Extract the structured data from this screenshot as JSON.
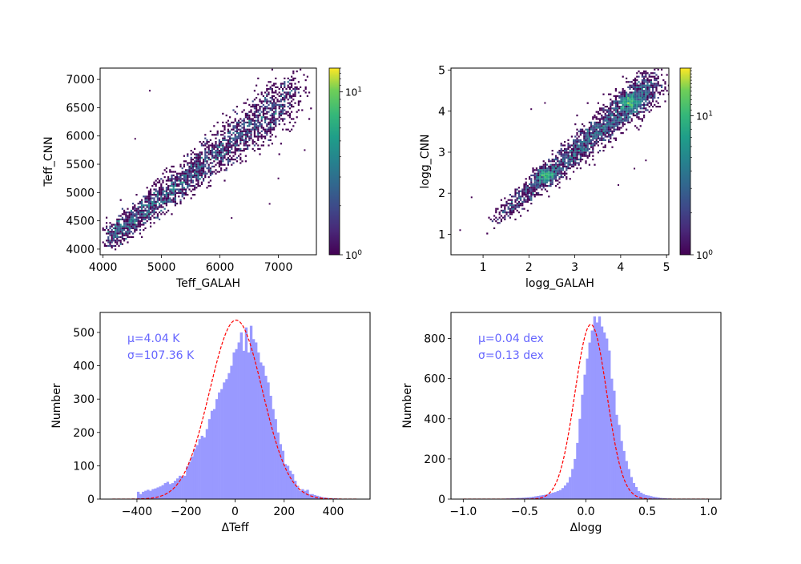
{
  "chart_data": [
    {
      "id": "teff_scatter",
      "type": "heatmap",
      "title": "",
      "xlabel": "Teff_GALAH",
      "ylabel": "Teff_CNN",
      "xlim": [
        3950,
        7650
      ],
      "ylim": [
        3900,
        7200
      ],
      "xticks": [
        4000,
        5000,
        6000,
        7000
      ],
      "yticks": [
        4000,
        4500,
        5000,
        5500,
        6000,
        6500,
        7000
      ],
      "colorbar": {
        "scale": "log",
        "range": [
          1,
          14
        ],
        "ticks": [
          {
            "value": 1,
            "label": "10^0"
          },
          {
            "value": 10,
            "label": "10^1"
          }
        ],
        "colormap": "viridis"
      },
      "trend": {
        "x0": 4100,
        "y0": 4200,
        "x1": 7400,
        "y1": 6900,
        "scatter_sigma": 150
      },
      "outliers": [
        [
          4800,
          6800
        ],
        [
          4550,
          5950
        ],
        [
          6850,
          4800
        ],
        [
          7000,
          5250
        ],
        [
          6200,
          4550
        ],
        [
          7450,
          5750
        ]
      ]
    },
    {
      "id": "logg_scatter",
      "type": "heatmap",
      "title": "",
      "xlabel": "logg_GALAH",
      "ylabel": "logg_CNN",
      "xlim": [
        0.3,
        5.05
      ],
      "ylim": [
        0.5,
        5.05
      ],
      "xticks": [
        1,
        2,
        3,
        4,
        5
      ],
      "yticks": [
        1,
        2,
        3,
        4,
        5
      ],
      "colorbar": {
        "scale": "log",
        "range": [
          1,
          22
        ],
        "ticks": [
          {
            "value": 1,
            "label": "10^0"
          },
          {
            "value": 10,
            "label": "10^1"
          }
        ],
        "colormap": "viridis"
      },
      "trend": {
        "x0": 1.2,
        "y0": 1.3,
        "x1": 4.7,
        "y1": 4.7,
        "scatter_sigma": 0.15
      },
      "clumps": [
        [
          2.35,
          2.45
        ],
        [
          4.2,
          4.25
        ]
      ],
      "outliers": [
        [
          2.35,
          4.2
        ],
        [
          2.05,
          4.05
        ],
        [
          0.5,
          1.1
        ],
        [
          0.75,
          1.9
        ],
        [
          3.95,
          2.2
        ],
        [
          4.3,
          2.6
        ],
        [
          4.55,
          2.8
        ]
      ]
    },
    {
      "id": "dteff_hist",
      "type": "bar",
      "title": "",
      "xlabel": "ΔTeff",
      "ylabel": "Number",
      "xlim": [
        -550,
        550
      ],
      "ylim": [
        0,
        560
      ],
      "xticks": [
        -400,
        -200,
        0,
        200,
        400
      ],
      "yticks": [
        0,
        100,
        200,
        300,
        400,
        500
      ],
      "annotations": [
        "μ=4.04 K",
        "σ=107.36 K"
      ],
      "fit": {
        "mu": 4.04,
        "sigma": 107.36,
        "peak": 537,
        "range": [
          -500,
          500
        ],
        "style": "red dashed"
      },
      "bin_width": 10,
      "bin_start": -400,
      "values": [
        22,
        15,
        22,
        25,
        28,
        25,
        30,
        32,
        35,
        38,
        42,
        48,
        52,
        45,
        48,
        55,
        62,
        70,
        68,
        70,
        98,
        112,
        128,
        150,
        162,
        180,
        190,
        185,
        210,
        240,
        265,
        270,
        300,
        320,
        330,
        350,
        360,
        378,
        400,
        440,
        450,
        470,
        500,
        445,
        515,
        440,
        520,
        480,
        470,
        440,
        410,
        400,
        370,
        350,
        310,
        270,
        240,
        200,
        165,
        145,
        105,
        100,
        85,
        75,
        55,
        40,
        25,
        30,
        25,
        28,
        15,
        15,
        12,
        10,
        8,
        6,
        5,
        4,
        3,
        3,
        2,
        2,
        1,
        1,
        1,
        1,
        1,
        1,
        1,
        1
      ]
    },
    {
      "id": "dlogg_hist",
      "type": "bar",
      "title": "",
      "xlabel": "Δlogg",
      "ylabel": "Number",
      "xlim": [
        -1.1,
        1.1
      ],
      "ylim": [
        0,
        930
      ],
      "xticks": [
        -1.0,
        -0.5,
        0.0,
        0.5,
        1.0
      ],
      "xtick_labels": [
        "−1.0",
        "−0.5",
        "0.0",
        "0.5",
        "1.0"
      ],
      "yticks": [
        0,
        200,
        400,
        600,
        800
      ],
      "annotations": [
        "μ=0.04 dex",
        "σ=0.13 dex"
      ],
      "fit": {
        "mu": 0.04,
        "sigma": 0.13,
        "peak": 870,
        "range": [
          -1.0,
          1.0
        ],
        "style": "red dashed"
      },
      "bin_width": 0.02,
      "bin_start": -0.7,
      "values": [
        2,
        2,
        3,
        3,
        4,
        4,
        5,
        6,
        6,
        7,
        8,
        9,
        10,
        12,
        14,
        16,
        18,
        20,
        22,
        25,
        28,
        32,
        35,
        40,
        45,
        55,
        68,
        82,
        110,
        150,
        200,
        280,
        400,
        520,
        620,
        700,
        780,
        840,
        910,
        880,
        910,
        860,
        830,
        800,
        740,
        600,
        540,
        420,
        370,
        290,
        240,
        190,
        150,
        110,
        80,
        60,
        40,
        32,
        25,
        20,
        18,
        15,
        12,
        10,
        8,
        6,
        5,
        4,
        3,
        3,
        2,
        2,
        2,
        1,
        1
      ]
    }
  ]
}
